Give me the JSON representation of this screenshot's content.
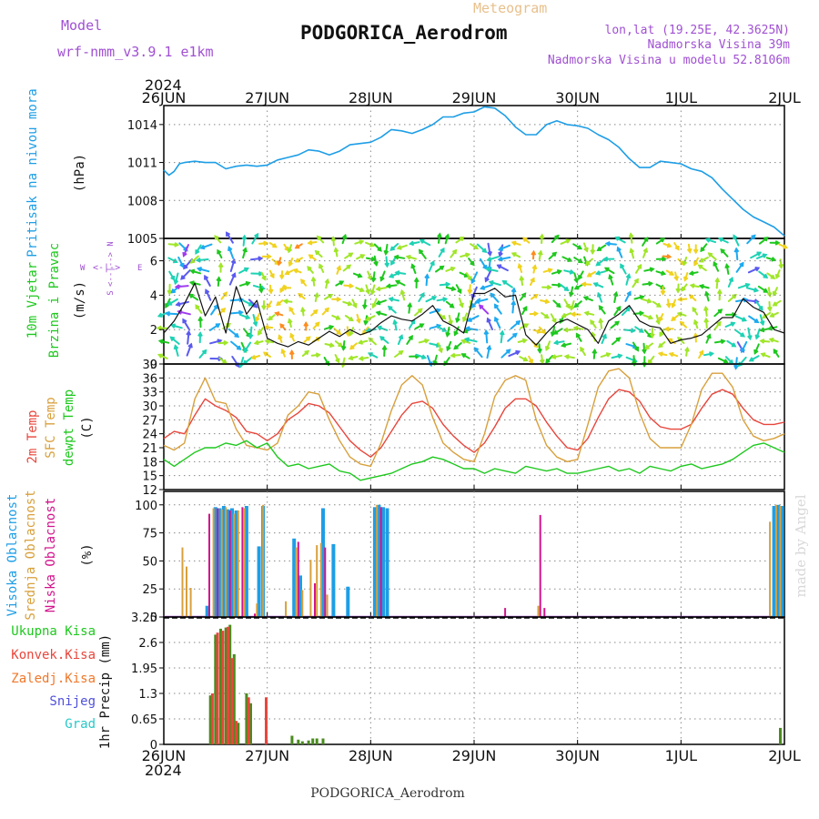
{
  "header": {
    "model_label": "Model",
    "model_value": "wrf-nmm_v3.9.1  e1km",
    "product": "Meteogram",
    "station": "PODGORICA_Aerodrom",
    "lonlat": "lon,lat (19.25E, 42.3625N)",
    "elevation": "Nadmorska Visina 39m",
    "model_elevation": "Nadmorska Visina u modelu 52.8106m",
    "footer_station": "PODGORICA_Aerodrom",
    "credit": "made by Angel"
  },
  "time_axis": {
    "year": "2024",
    "labels": [
      "26JUN",
      "27JUN",
      "28JUN",
      "29JUN",
      "30JUN",
      "1JUL",
      "2JUL"
    ]
  },
  "colors": {
    "pressure": "#1e9ee6",
    "temp2m": "#e8463c",
    "sfc": "#d8a03c",
    "dewpt": "#1ec81e",
    "high_cloud": "#1e9ee6",
    "mid_cloud": "#d8a03c",
    "low_cloud": "#d2148c",
    "precip_total": "#1ec81e",
    "precip_conv": "#e8463c",
    "precip_froz": "#f0782a",
    "snow": "#5050dc",
    "hail": "#28c8c8",
    "purple": "#a050d2"
  },
  "chart_data": [
    {
      "type": "line",
      "panel": "pressure",
      "ylabel": [
        "Pritisak na nivou mora",
        "(hPa)"
      ],
      "yticks": [
        "1005",
        "1008",
        "1011",
        "1014"
      ],
      "ylim": [
        1005,
        1015.5
      ],
      "x_day": [
        0,
        0.05,
        0.1,
        0.15,
        0.2,
        0.3,
        0.4,
        0.5,
        0.6,
        0.7,
        0.8,
        0.9,
        1.0,
        1.1,
        1.2,
        1.3,
        1.4,
        1.5,
        1.6,
        1.7,
        1.8,
        1.9,
        2.0,
        2.1,
        2.2,
        2.3,
        2.4,
        2.5,
        2.6,
        2.7,
        2.8,
        2.9,
        3.0,
        3.1,
        3.2,
        3.3,
        3.4,
        3.5,
        3.6,
        3.7,
        3.8,
        3.9,
        4.0,
        4.1,
        4.2,
        4.3,
        4.4,
        4.5,
        4.6,
        4.7,
        4.8,
        4.9,
        5.0,
        5.1,
        5.2,
        5.3,
        5.4,
        5.5,
        5.6,
        5.7,
        5.8,
        5.9,
        6.0
      ],
      "series": [
        {
          "values": [
            1010.4,
            1010.0,
            1010.3,
            1010.9,
            1011.0,
            1011.1,
            1011.0,
            1011.0,
            1010.5,
            1010.7,
            1010.8,
            1010.7,
            1010.8,
            1011.2,
            1011.4,
            1011.6,
            1012.0,
            1011.9,
            1011.6,
            1011.9,
            1012.4,
            1012.5,
            1012.6,
            1013.0,
            1013.6,
            1013.5,
            1013.3,
            1013.6,
            1014.0,
            1014.6,
            1014.6,
            1014.9,
            1015.0,
            1015.4,
            1015.3,
            1014.7,
            1013.8,
            1013.2,
            1013.2,
            1014.0,
            1014.3,
            1014.0,
            1013.9,
            1013.7,
            1013.2,
            1012.8,
            1012.2,
            1011.3,
            1010.6,
            1010.6,
            1011.1,
            1011.0,
            1010.9,
            1010.5,
            1010.3,
            1009.8,
            1008.9,
            1008.1,
            1007.3,
            1006.7,
            1006.3,
            1005.9,
            1005.2
          ]
        }
      ]
    },
    {
      "type": "line",
      "panel": "wind",
      "ylabel": [
        "10m Vjetar",
        "Brzina i Pravac",
        "(m/s)"
      ],
      "yticks": [
        "0",
        "2",
        "4",
        "6"
      ],
      "ylim": [
        0,
        7.3
      ],
      "compass": [
        "N",
        "S",
        "W",
        "E"
      ],
      "x_day": [
        0,
        0.1,
        0.2,
        0.3,
        0.4,
        0.5,
        0.6,
        0.7,
        0.8,
        0.9,
        1.0,
        1.1,
        1.2,
        1.3,
        1.4,
        1.5,
        1.6,
        1.7,
        1.8,
        1.9,
        2.0,
        2.1,
        2.2,
        2.3,
        2.4,
        2.5,
        2.6,
        2.7,
        2.8,
        2.9,
        3.0,
        3.1,
        3.2,
        3.3,
        3.4,
        3.5,
        3.6,
        3.7,
        3.8,
        3.9,
        4.0,
        4.1,
        4.2,
        4.3,
        4.4,
        4.5,
        4.6,
        4.7,
        4.8,
        4.9,
        5.0,
        5.1,
        5.2,
        5.3,
        5.4,
        5.5,
        5.6,
        5.7,
        5.8,
        5.9,
        6.0
      ],
      "series": [
        {
          "values": [
            1.8,
            2.5,
            3.5,
            4.7,
            2.8,
            3.9,
            1.8,
            4.5,
            2.9,
            3.7,
            1.5,
            1.2,
            1.0,
            1.3,
            1.1,
            1.5,
            1.9,
            1.6,
            2.0,
            1.7,
            1.9,
            2.4,
            2.8,
            2.6,
            2.5,
            2.9,
            3.4,
            2.5,
            2.2,
            1.8,
            4.1,
            4.1,
            4.4,
            3.9,
            4.0,
            1.7,
            1.1,
            1.8,
            2.4,
            2.6,
            2.3,
            2.0,
            1.2,
            2.5,
            2.9,
            3.4,
            2.5,
            2.2,
            2.1,
            1.2,
            1.4,
            1.5,
            1.7,
            2.2,
            2.7,
            2.7,
            3.8,
            3.3,
            3.0,
            2.0,
            1.8
          ]
        }
      ]
    },
    {
      "type": "line",
      "panel": "temperature",
      "ylabel": [
        "2m Temp",
        "SFC Temp",
        "dewpt Temp",
        "(C)"
      ],
      "yticks": [
        "12",
        "15",
        "18",
        "21",
        "24",
        "27",
        "30",
        "33",
        "36",
        "39"
      ],
      "ylim": [
        12,
        39
      ],
      "x_day": [
        0,
        0.1,
        0.2,
        0.3,
        0.4,
        0.5,
        0.6,
        0.7,
        0.8,
        0.9,
        1.0,
        1.1,
        1.2,
        1.3,
        1.4,
        1.5,
        1.6,
        1.7,
        1.8,
        1.9,
        2.0,
        2.1,
        2.2,
        2.3,
        2.4,
        2.5,
        2.6,
        2.7,
        2.8,
        2.9,
        3.0,
        3.1,
        3.2,
        3.3,
        3.4,
        3.5,
        3.6,
        3.7,
        3.8,
        3.9,
        4.0,
        4.1,
        4.2,
        4.3,
        4.4,
        4.5,
        4.6,
        4.7,
        4.8,
        4.9,
        5.0,
        5.1,
        5.2,
        5.3,
        5.4,
        5.5,
        5.6,
        5.7,
        5.8,
        5.9,
        6.0
      ],
      "series": [
        {
          "name": "2m Temp",
          "values": [
            23.0,
            24.5,
            24.0,
            28.0,
            31.5,
            30.0,
            29.0,
            27.5,
            24.5,
            24.0,
            22.5,
            24.0,
            27.0,
            28.5,
            30.5,
            30.0,
            28.5,
            25.5,
            22.5,
            20.5,
            19.0,
            21.0,
            24.5,
            28.0,
            30.5,
            31.0,
            29.5,
            26.0,
            23.5,
            21.5,
            20.0,
            22.0,
            25.5,
            29.5,
            31.5,
            31.5,
            30.0,
            26.5,
            23.5,
            21.0,
            20.5,
            23.0,
            27.5,
            31.5,
            33.5,
            33.0,
            31.0,
            27.5,
            25.5,
            25.0,
            25.0,
            26.0,
            29.5,
            32.5,
            33.5,
            32.5,
            29.5,
            27.0,
            26.0,
            26.0,
            26.5
          ]
        },
        {
          "name": "SFC Temp",
          "values": [
            21.5,
            20.5,
            22.0,
            31.5,
            36.0,
            31.0,
            30.5,
            25.0,
            21.5,
            21.0,
            20.5,
            22.0,
            28.0,
            30.0,
            33.0,
            32.5,
            27.0,
            22.5,
            19.0,
            17.5,
            17.0,
            22.0,
            29.0,
            34.5,
            36.5,
            34.5,
            27.5,
            22.0,
            20.0,
            18.5,
            18.0,
            24.0,
            32.0,
            35.5,
            36.5,
            35.5,
            27.0,
            21.5,
            19.0,
            18.0,
            18.5,
            26.0,
            34.0,
            37.5,
            38.0,
            36.0,
            28.5,
            23.0,
            21.0,
            21.0,
            21.0,
            26.0,
            33.5,
            37.0,
            37.0,
            34.0,
            27.0,
            23.5,
            22.5,
            23.0,
            24.0
          ]
        },
        {
          "name": "dewpt Temp",
          "values": [
            18.5,
            17.0,
            18.5,
            20.0,
            21.0,
            21.0,
            22.0,
            21.5,
            22.5,
            21.0,
            22.0,
            19.0,
            17.0,
            17.5,
            16.5,
            17.0,
            17.5,
            16.0,
            15.5,
            14.0,
            14.5,
            15.0,
            15.5,
            16.5,
            17.5,
            18.0,
            19.0,
            18.5,
            17.5,
            16.5,
            16.5,
            15.5,
            16.5,
            16.0,
            15.5,
            17.0,
            16.5,
            16.0,
            16.5,
            15.5,
            15.5,
            16.0,
            16.5,
            17.0,
            16.0,
            16.5,
            15.5,
            17.0,
            16.5,
            16.0,
            17.0,
            17.5,
            16.5,
            17.0,
            17.5,
            18.5,
            20.0,
            21.5,
            22.0,
            21.0,
            20.0
          ]
        }
      ]
    },
    {
      "type": "bar",
      "panel": "cloud",
      "ylabel": [
        "Visoka Oblacnost",
        "Srednja Oblacnost",
        "Niska Oblacnost",
        "(%)"
      ],
      "yticks": [
        "0",
        "25",
        "50",
        "75",
        "100"
      ],
      "ylim": [
        0,
        100
      ],
      "series": [
        {
          "name": "Visoka Oblacnost",
          "bars": [
            [
              0.42,
              10
            ],
            [
              0.5,
              98
            ],
            [
              0.54,
              97
            ],
            [
              0.58,
              99
            ],
            [
              0.62,
              96
            ],
            [
              0.66,
              97
            ],
            [
              0.7,
              95
            ],
            [
              0.8,
              99
            ],
            [
              0.92,
              63
            ],
            [
              0.96,
              99
            ],
            [
              1.26,
              70
            ],
            [
              1.32,
              37
            ],
            [
              1.54,
              97
            ],
            [
              1.64,
              65
            ],
            [
              1.78,
              27
            ],
            [
              2.04,
              98
            ],
            [
              2.08,
              100
            ],
            [
              2.12,
              98
            ],
            [
              2.16,
              97
            ],
            [
              5.9,
              99
            ],
            [
              5.94,
              100
            ],
            [
              5.98,
              99
            ]
          ]
        },
        {
          "name": "Srednja Oblacnost",
          "bars": [
            [
              0.18,
              62
            ],
            [
              0.22,
              45
            ],
            [
              0.26,
              26
            ],
            [
              0.48,
              97
            ],
            [
              0.56,
              96
            ],
            [
              0.6,
              98
            ],
            [
              0.68,
              92
            ],
            [
              0.72,
              95
            ],
            [
              0.78,
              97
            ],
            [
              0.9,
              12
            ],
            [
              0.96,
              100
            ],
            [
              1.18,
              14
            ],
            [
              1.28,
              62
            ],
            [
              1.34,
              24
            ],
            [
              1.42,
              51
            ],
            [
              1.48,
              64
            ],
            [
              1.52,
              66
            ],
            [
              1.58,
              20
            ],
            [
              2.06,
              100
            ],
            [
              3.62,
              10
            ],
            [
              5.86,
              85
            ],
            [
              5.92,
              100
            ],
            [
              5.96,
              99
            ]
          ]
        },
        {
          "name": "Niska Oblacnost",
          "bars": [
            [
              0.44,
              92
            ],
            [
              0.52,
              97
            ],
            [
              0.64,
              95
            ],
            [
              0.76,
              98
            ],
            [
              0.88,
              3
            ],
            [
              1.3,
              67
            ],
            [
              1.46,
              30
            ],
            [
              1.56,
              62
            ],
            [
              2.1,
              98
            ],
            [
              3.3,
              8
            ],
            [
              3.64,
              91
            ],
            [
              3.68,
              8
            ]
          ]
        }
      ]
    },
    {
      "type": "bar",
      "panel": "precip",
      "ylabel": [
        "1hr Precip (mm)"
      ],
      "yticks": [
        "0",
        "0.65",
        "1.3",
        "1.95",
        "2.6",
        "3.25"
      ],
      "ylim": [
        0,
        3.25
      ],
      "legend": [
        "Ukupna Kisa",
        "Konvek.Kisa",
        "Zaledj.Kisa",
        "Snijeg",
        "Grad"
      ],
      "series": [
        {
          "name": "Ukupna Kisa",
          "bars": [
            [
              0.45,
              1.25
            ],
            [
              0.5,
              2.8
            ],
            [
              0.55,
              2.95
            ],
            [
              0.6,
              2.98
            ],
            [
              0.64,
              3.05
            ],
            [
              0.68,
              2.3
            ],
            [
              0.72,
              0.55
            ],
            [
              0.8,
              1.3
            ],
            [
              0.84,
              1.05
            ],
            [
              1.24,
              0.22
            ],
            [
              1.3,
              0.12
            ],
            [
              1.34,
              0.08
            ],
            [
              1.4,
              0.1
            ],
            [
              1.44,
              0.15
            ],
            [
              1.48,
              0.15
            ],
            [
              1.54,
              0.15
            ],
            [
              5.96,
              0.42
            ]
          ]
        },
        {
          "name": "Konvek.Kisa",
          "bars": [
            [
              0.47,
              1.3
            ],
            [
              0.52,
              2.85
            ],
            [
              0.57,
              2.9
            ],
            [
              0.62,
              3.0
            ],
            [
              0.66,
              2.2
            ],
            [
              0.7,
              0.6
            ],
            [
              0.82,
              1.2
            ],
            [
              0.99,
              1.2
            ]
          ]
        }
      ]
    }
  ]
}
